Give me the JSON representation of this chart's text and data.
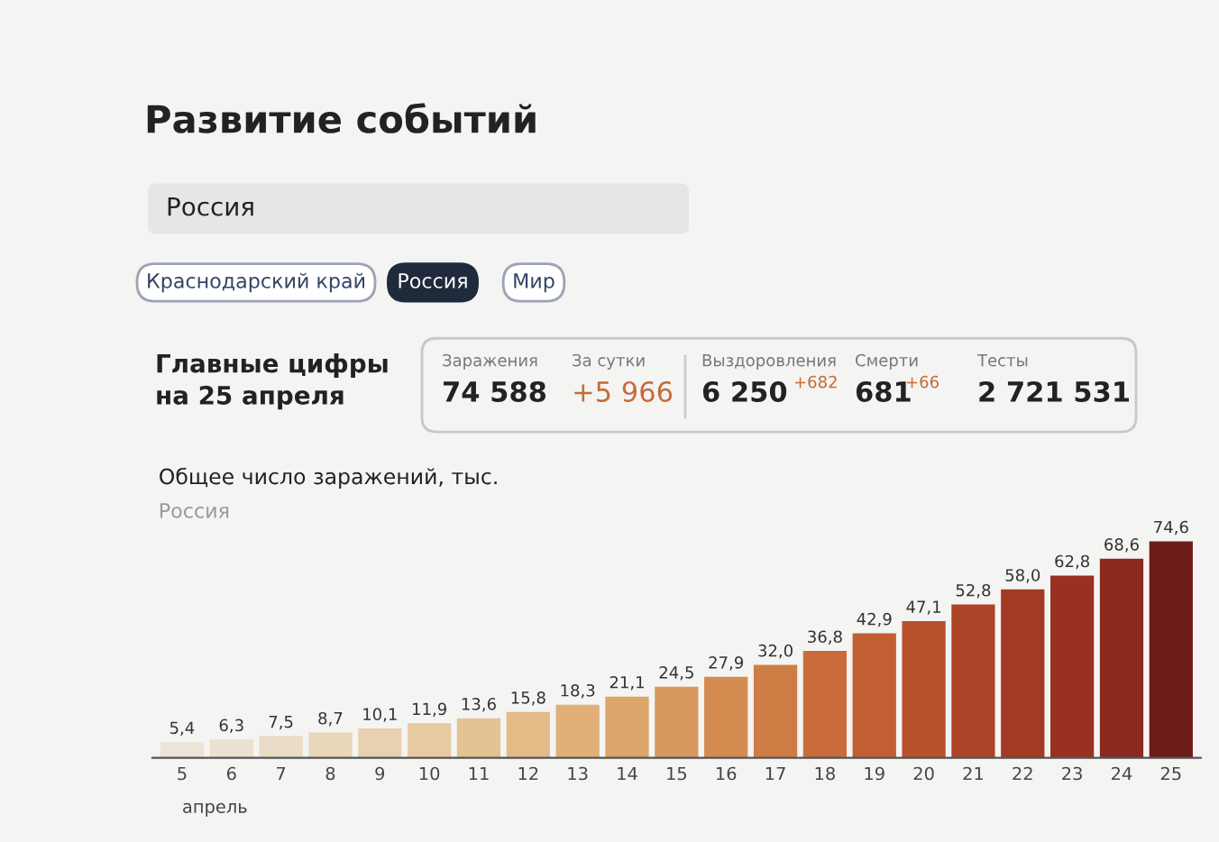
{
  "chart_data": [
    {
      "type": "other",
      "title": "Развитие событий",
      "annotations": [
        "Россия",
        "Краснодарский край",
        "Россия",
        "Мир",
        "Главные цифры\nна 25 апреля",
        "Заражения",
        "74 588",
        "За сутки",
        "+5 966",
        "Выздоровления",
        "6 250",
        "+682",
        "Смерти",
        "681",
        "+66",
        "Тесты",
        "2 721 531"
      ]
    },
    {
      "type": "bar",
      "title": "Общее число заражений, тыс.",
      "subtitle": "Россия",
      "categories": [
        "5",
        "6",
        "7",
        "8",
        "9",
        "10",
        "11",
        "12",
        "13",
        "14",
        "15",
        "16",
        "17",
        "18",
        "19",
        "20",
        "21",
        "22",
        "23",
        "24",
        "25"
      ],
      "values": [
        5.4,
        6.3,
        7.5,
        8.7,
        10.1,
        11.9,
        13.6,
        15.8,
        18.3,
        21.1,
        24.5,
        27.9,
        32.0,
        36.8,
        42.9,
        47.1,
        52.8,
        58.0,
        62.8,
        68.6,
        74.6
      ],
      "value_labels": [
        "5,4",
        "6,3",
        "7,5",
        "8,7",
        "10,1",
        "11,9",
        "13,6",
        "15,8",
        "18,3",
        "21,1",
        "24,5",
        "27,9",
        "32,0",
        "36,8",
        "42,9",
        "47,1",
        "52,8",
        "58,0",
        "62,8",
        "68,6",
        "74,6"
      ],
      "colors": [
        "#ece4d6",
        "#ebe1d0",
        "#eadcc6",
        "#e9d7bc",
        "#e8d1b0",
        "#e6caa2",
        "#e4c294",
        "#e3bb86",
        "#e0b078",
        "#dca56a",
        "#d9995d",
        "#d48b50",
        "#cf7c44",
        "#c96c3a",
        "#c25e33",
        "#b8502d",
        "#ad4428",
        "#a33a24",
        "#983121",
        "#8b291e",
        "#6e1c18"
      ],
      "annotations": [
        "апрель"
      ]
    }
  ]
}
